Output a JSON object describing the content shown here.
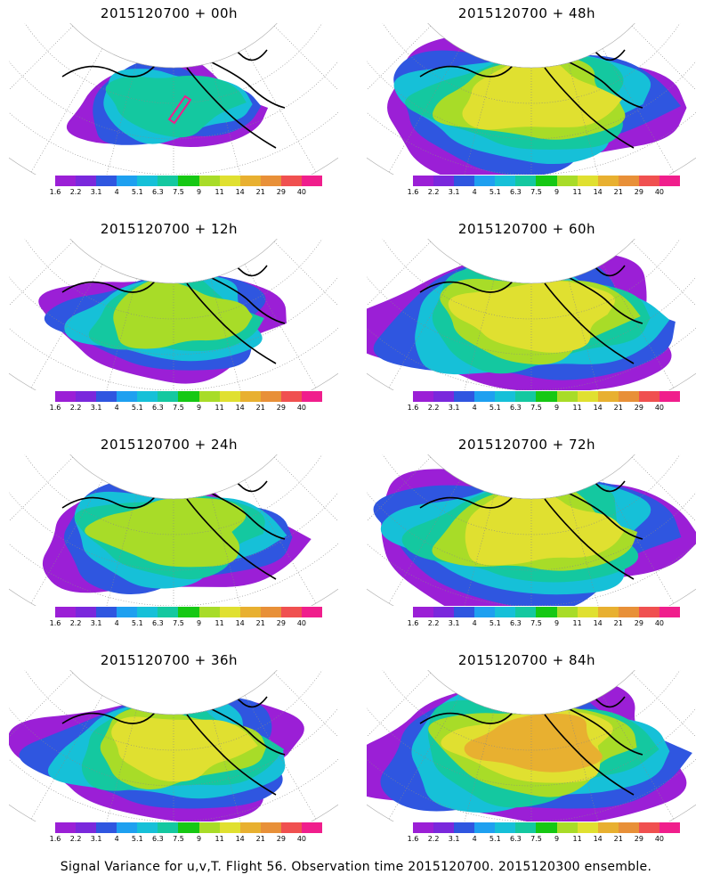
{
  "panels": [
    {
      "title": "2015120700 + 00h",
      "intensity": 0.35,
      "spread": 0.35,
      "marker": true
    },
    {
      "title": "2015120700 + 48h",
      "intensity": 0.65,
      "spread": 0.85,
      "marker": false
    },
    {
      "title": "2015120700 + 12h",
      "intensity": 0.55,
      "spread": 0.55,
      "marker": false
    },
    {
      "title": "2015120700 + 60h",
      "intensity": 0.7,
      "spread": 0.9,
      "marker": false
    },
    {
      "title": "2015120700 + 24h",
      "intensity": 0.6,
      "spread": 0.65,
      "marker": false
    },
    {
      "title": "2015120700 + 72h",
      "intensity": 0.72,
      "spread": 0.92,
      "marker": false
    },
    {
      "title": "2015120700 + 36h",
      "intensity": 0.65,
      "spread": 0.75,
      "marker": false
    },
    {
      "title": "2015120700 + 84h",
      "intensity": 0.75,
      "spread": 0.95,
      "marker": false
    }
  ],
  "colorbar": {
    "labels": [
      "1.6",
      "2.2",
      "3.1",
      "4",
      "5.1",
      "6.3",
      "7.5",
      "9",
      "11",
      "14",
      "21",
      "29",
      "40"
    ],
    "colors": [
      "#9b1fd6",
      "#7a28dc",
      "#2f56e0",
      "#1ea0f0",
      "#16c0d8",
      "#14c8a0",
      "#16c814",
      "#a8dc28",
      "#e0e030",
      "#e8b030",
      "#e89038",
      "#f05050",
      "#f01e8c"
    ]
  },
  "footer": "Signal Variance for u,v,T. Flight 56. Observation time 2015120700. 2015120300 ensemble."
}
